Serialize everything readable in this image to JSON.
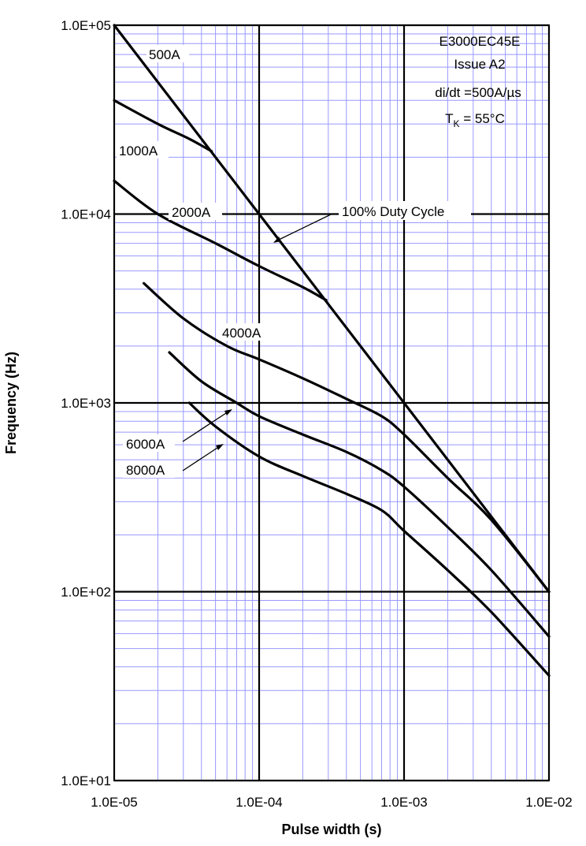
{
  "chart_data": {
    "type": "line",
    "xscale": "log",
    "yscale": "log",
    "xlim": [
      1e-05,
      0.01
    ],
    "ylim": [
      10,
      100000
    ],
    "xlabel": "Pulse width (s)",
    "ylabel": "Frequency (Hz)",
    "xticks": [
      {
        "value": 1e-05,
        "label": "1.0E-05"
      },
      {
        "value": 0.0001,
        "label": "1.0E-04"
      },
      {
        "value": 0.001,
        "label": "1.0E-03"
      },
      {
        "value": 0.01,
        "label": "1.0E-02"
      }
    ],
    "yticks": [
      {
        "value": 100000,
        "label": "1.0E+05"
      },
      {
        "value": 10000,
        "label": "1.0E+04"
      },
      {
        "value": 1000,
        "label": "1.0E+03"
      },
      {
        "value": 100,
        "label": "1.0E+02"
      },
      {
        "value": 10,
        "label": "1.0E+01"
      }
    ],
    "grid": true,
    "info_box": [
      "E3000EC45E",
      "Issue A2",
      "di/dt =500A/µs",
      "T_K = 55°C"
    ],
    "series": [
      {
        "name": "500A / 100% Duty Cycle",
        "points": [
          [
            1e-05,
            100000
          ],
          [
            0.0001,
            10000
          ],
          [
            0.001,
            1000
          ],
          [
            0.01,
            100
          ]
        ]
      },
      {
        "name": "1000A",
        "points": [
          [
            1e-05,
            40000
          ],
          [
            2e-05,
            30000
          ],
          [
            3.3e-05,
            25000
          ],
          [
            4.7e-05,
            21500
          ]
        ]
      },
      {
        "name": "2000A",
        "points": [
          [
            1e-05,
            15000
          ],
          [
            2e-05,
            10000
          ],
          [
            5e-05,
            7000
          ],
          [
            0.0001,
            5300
          ],
          [
            0.0002,
            4100
          ],
          [
            0.00029,
            3500
          ]
        ]
      },
      {
        "name": "4000A",
        "points": [
          [
            1.6e-05,
            4300
          ],
          [
            3e-05,
            2800
          ],
          [
            6e-05,
            2000
          ],
          [
            0.0001,
            1700
          ],
          [
            0.0002,
            1350
          ],
          [
            0.0004,
            1050
          ],
          [
            0.0007,
            850
          ],
          [
            0.001,
            680
          ],
          [
            0.002,
            400
          ],
          [
            0.004,
            240
          ],
          [
            0.01,
            100
          ]
        ]
      },
      {
        "name": "6000A",
        "points": [
          [
            2.4e-05,
            1850
          ],
          [
            4e-05,
            1300
          ],
          [
            7e-05,
            1000
          ],
          [
            0.0001,
            850
          ],
          [
            0.0002,
            680
          ],
          [
            0.0004,
            550
          ],
          [
            0.0007,
            440
          ],
          [
            0.001,
            360
          ],
          [
            0.002,
            220
          ],
          [
            0.004,
            130
          ],
          [
            0.01,
            58
          ]
        ]
      },
      {
        "name": "8000A",
        "points": [
          [
            3.3e-05,
            1000
          ],
          [
            5e-05,
            750
          ],
          [
            0.0001,
            520
          ],
          [
            0.0002,
            410
          ],
          [
            0.0004,
            330
          ],
          [
            0.0007,
            270
          ],
          [
            0.001,
            210
          ],
          [
            0.002,
            130
          ],
          [
            0.004,
            78
          ],
          [
            0.01,
            36
          ]
        ]
      }
    ],
    "annotations": [
      {
        "text": "500A",
        "series": "500A / 100% Duty Cycle"
      },
      {
        "text": "1000A",
        "series": "1000A"
      },
      {
        "text": "2000A",
        "series": "2000A"
      },
      {
        "text": "100% Duty Cycle",
        "series": "500A / 100% Duty Cycle"
      },
      {
        "text": "4000A",
        "series": "4000A"
      },
      {
        "text": "6000A",
        "series": "6000A"
      },
      {
        "text": "8000A",
        "series": "8000A"
      }
    ]
  },
  "colors": {
    "minor_grid": "#9999ff",
    "major_grid": "#000000",
    "curve": "#000000"
  }
}
